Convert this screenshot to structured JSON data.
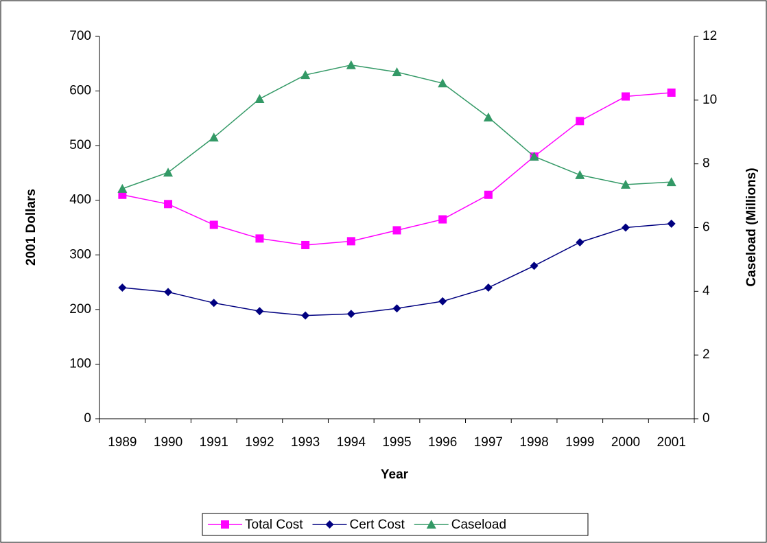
{
  "chart_data": {
    "type": "line",
    "x_label": "Year",
    "y_label": "2001 Dollars",
    "y2_label": "Caseload (Millions)",
    "categories": [
      "1989",
      "1990",
      "1991",
      "1992",
      "1993",
      "1994",
      "1995",
      "1996",
      "1997",
      "1998",
      "1999",
      "2000",
      "2001"
    ],
    "series": [
      {
        "name": "Total Cost",
        "color": "#ff00ff",
        "marker": "square",
        "values": [
          410,
          393,
          355,
          330,
          318,
          325,
          345,
          365,
          410,
          480,
          545,
          590,
          597
        ]
      },
      {
        "name": "Cert Cost",
        "color": "#000080",
        "marker": "diamond",
        "values": [
          240,
          232,
          212,
          197,
          189,
          192,
          202,
          215,
          240,
          280,
          323,
          350,
          357
        ]
      },
      {
        "name": "Caseload",
        "color": "#339966",
        "marker": "triangle",
        "axis": "y2",
        "values": [
          7.22,
          7.73,
          8.83,
          10.04,
          10.79,
          11.1,
          10.88,
          10.53,
          9.46,
          8.23,
          7.65,
          7.35,
          7.43
        ]
      }
    ],
    "ylim": [
      0,
      700
    ],
    "yticks": [
      0,
      100,
      200,
      300,
      400,
      500,
      600,
      700
    ],
    "y2lim": [
      0,
      12
    ],
    "y2ticks": [
      0,
      2,
      4,
      6,
      8,
      10,
      12
    ],
    "legend": "bottom"
  }
}
